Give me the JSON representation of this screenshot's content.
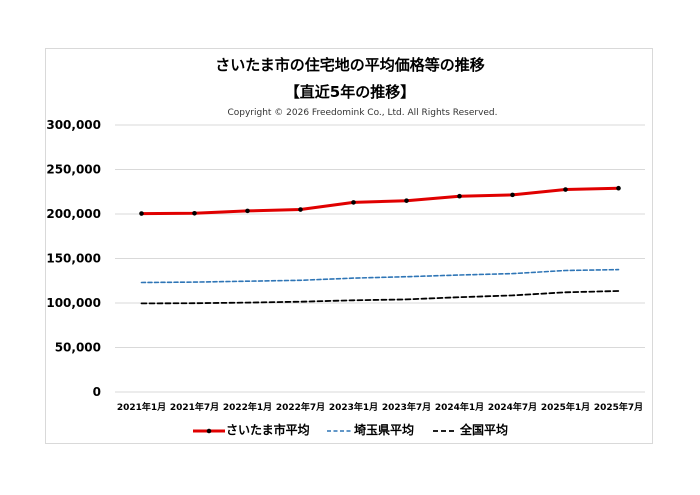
{
  "chart_data": {
    "type": "line",
    "title": "さいたま市の住宅地の平均価格等の推移",
    "subtitle": "【直近5年の推移】",
    "copyright": "Copyright © 2026 Freedomink Co., Ltd. All Rights Reserved.",
    "categories": [
      "2021年1月",
      "2021年7月",
      "2022年1月",
      "2022年7月",
      "2023年1月",
      "2023年7月",
      "2024年1月",
      "2024年7月",
      "2025年1月",
      "2025年7月"
    ],
    "yticks": [
      "300,000",
      "250,000",
      "200,000",
      "150,000",
      "100,000",
      "50,000",
      "0"
    ],
    "ylim": [
      0,
      300000
    ],
    "grid": true,
    "legend_position": "bottom",
    "series": [
      {
        "name": "さいたま市平均",
        "color": "#e00000",
        "style": "solid-markers",
        "values": [
          200500,
          200800,
          203500,
          205000,
          213000,
          215000,
          220000,
          221500,
          227500,
          229000
        ]
      },
      {
        "name": "埼玉県平均",
        "color": "#2e75b6",
        "style": "dashed",
        "values": [
          123000,
          123500,
          124500,
          125500,
          128000,
          129500,
          131500,
          133000,
          136500,
          137500
        ]
      },
      {
        "name": "全国平均",
        "color": "#000000",
        "style": "dashed",
        "values": [
          99500,
          99800,
          100500,
          101500,
          103000,
          104000,
          106500,
          108500,
          112000,
          113500
        ]
      }
    ]
  }
}
